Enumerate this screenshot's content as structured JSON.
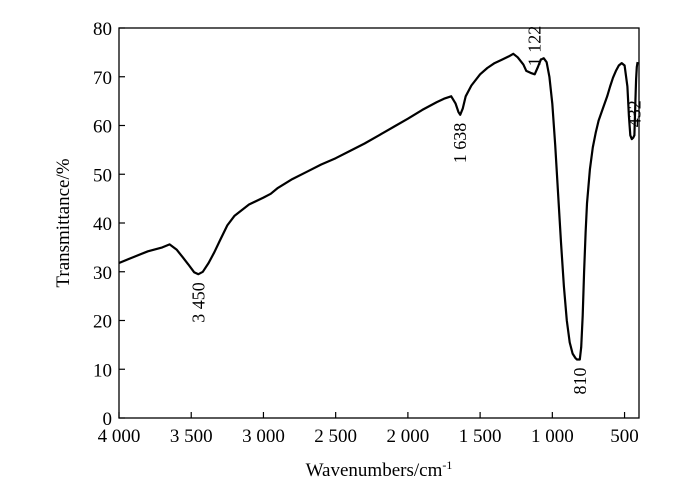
{
  "chart_data": {
    "type": "line",
    "xlabel": "Wavenumbers/cm",
    "xlabel_superscript": "-1",
    "ylabel": "Transmittance/%",
    "xlim": [
      4000,
      400
    ],
    "ylim": [
      0,
      80
    ],
    "x_reversed": true,
    "grid": false,
    "x_ticks": [
      4000,
      3500,
      3000,
      2500,
      2000,
      1500,
      1000,
      500
    ],
    "x_tick_labels": [
      "4 000",
      "3 500",
      "3 000",
      "2 500",
      "2 000",
      "1 500",
      "1 000",
      "500"
    ],
    "y_ticks": [
      0,
      10,
      20,
      30,
      40,
      50,
      60,
      70,
      80
    ],
    "y_tick_labels": [
      "0",
      "10",
      "20",
      "30",
      "40",
      "50",
      "60",
      "70",
      "80"
    ],
    "series": [
      {
        "x": [
          4000,
          3900,
          3800,
          3700,
          3650,
          3600,
          3560,
          3520,
          3480,
          3450,
          3420,
          3380,
          3340,
          3300,
          3250,
          3200,
          3100,
          3000,
          2950,
          2900,
          2800,
          2700,
          2600,
          2500,
          2400,
          2300,
          2200,
          2100,
          2000,
          1900,
          1800,
          1750,
          1700,
          1670,
          1650,
          1638,
          1620,
          1600,
          1560,
          1500,
          1450,
          1400,
          1350,
          1300,
          1270,
          1240,
          1200,
          1180,
          1150,
          1122,
          1100,
          1080,
          1060,
          1040,
          1020,
          1000,
          980,
          960,
          940,
          920,
          900,
          880,
          860,
          840,
          830,
          820,
          810,
          800,
          790,
          780,
          770,
          760,
          740,
          720,
          700,
          680,
          650,
          620,
          600,
          580,
          560,
          540,
          520,
          500,
          480,
          470,
          460,
          450,
          440,
          432,
          425,
          420,
          415,
          410
        ],
        "y": [
          31.8,
          33.0,
          34.2,
          35.0,
          35.6,
          34.5,
          33.0,
          31.5,
          29.9,
          29.5,
          30.0,
          31.8,
          34.0,
          36.5,
          39.5,
          41.5,
          43.8,
          45.2,
          46.0,
          47.2,
          49.0,
          50.5,
          52.0,
          53.3,
          54.8,
          56.3,
          58.0,
          59.7,
          61.4,
          63.2,
          64.8,
          65.5,
          66.0,
          64.5,
          62.8,
          62.2,
          63.5,
          66.0,
          68.2,
          70.5,
          71.8,
          72.8,
          73.5,
          74.2,
          74.7,
          74.0,
          72.5,
          71.2,
          70.8,
          70.5,
          72.0,
          73.5,
          73.8,
          73.0,
          70.0,
          64.5,
          56.0,
          46.0,
          36.0,
          27.0,
          20.0,
          15.5,
          13.2,
          12.3,
          12.0,
          12.0,
          12.0,
          14.5,
          21.0,
          30.0,
          38.0,
          44.0,
          51.0,
          55.5,
          58.5,
          61.0,
          63.5,
          66.0,
          68.0,
          69.8,
          71.2,
          72.3,
          72.8,
          72.3,
          68.0,
          62.0,
          58.0,
          57.2,
          57.5,
          58.0,
          65.0,
          69.5,
          72.0,
          73.0
        ]
      }
    ],
    "annotations": [
      {
        "text": "3 450",
        "x": 3450
      },
      {
        "text": "1 638",
        "x": 1638
      },
      {
        "text": "1 122",
        "x": 1122
      },
      {
        "text": "810",
        "x": 810
      },
      {
        "text": "432",
        "x": 432
      }
    ],
    "line_color": "#000000"
  }
}
